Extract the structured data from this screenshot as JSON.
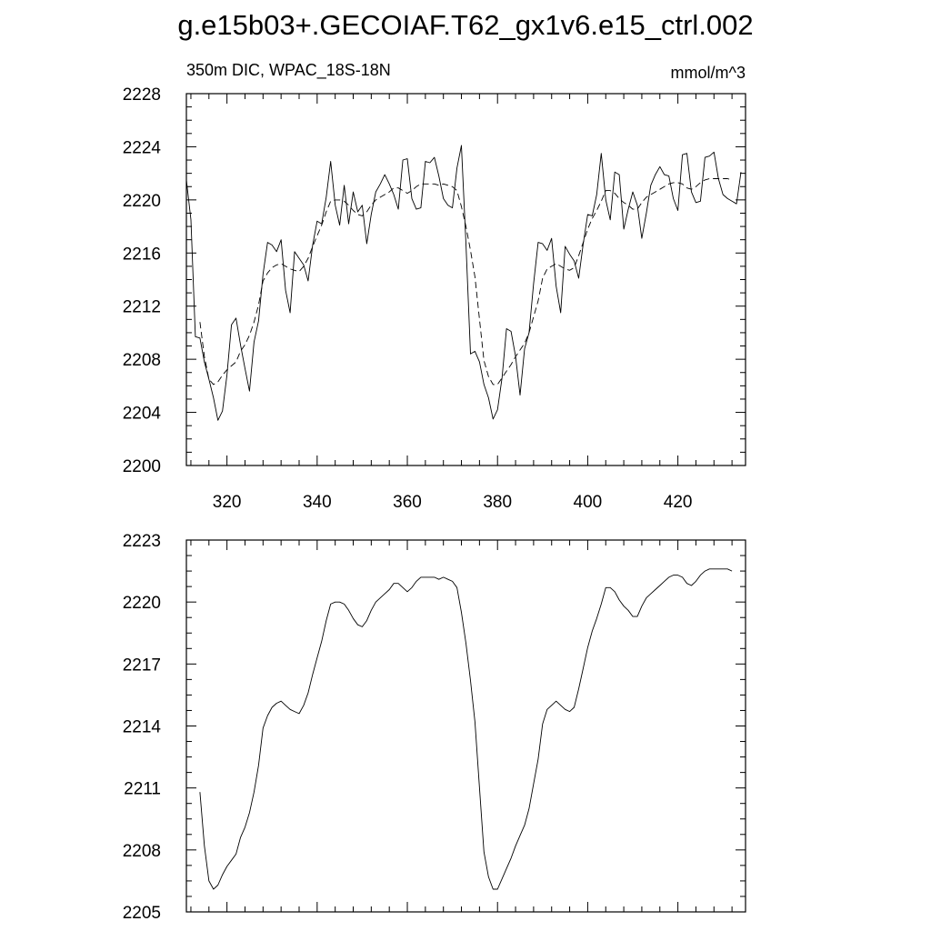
{
  "title": "g.e15b03+.GECOIAF.T62_gx1v6.e15_ctrl.002",
  "chart_data": [
    {
      "type": "line",
      "subtitle_left": "350m DIC, WPAC_18S-18N",
      "subtitle_right": "mmol/m^3",
      "xlim": [
        311,
        435
      ],
      "ylim": [
        2200,
        2228
      ],
      "x_ticks": [
        320,
        340,
        360,
        380,
        400,
        420
      ],
      "y_ticks": [
        2200,
        2204,
        2208,
        2212,
        2216,
        2220,
        2224,
        2228
      ],
      "grid": false,
      "series": [
        {
          "style": "solid",
          "x": [
            311,
            312,
            313,
            314,
            315,
            316,
            317,
            318,
            319,
            320,
            321,
            322,
            323,
            324,
            325,
            326,
            327,
            328,
            329,
            330,
            331,
            332,
            333,
            334,
            335,
            336,
            337,
            338,
            339,
            340,
            341,
            342,
            343,
            344,
            345,
            346,
            347,
            348,
            349,
            350,
            351,
            352,
            353,
            354,
            355,
            356,
            357,
            358,
            359,
            360,
            361,
            362,
            363,
            364,
            365,
            366,
            367,
            368,
            369,
            370,
            371,
            372,
            373,
            374,
            375,
            376,
            377,
            378,
            379,
            380,
            381,
            382,
            383,
            384,
            385,
            386,
            387,
            388,
            389,
            390,
            391,
            392,
            393,
            394,
            395,
            396,
            397,
            398,
            399,
            400,
            401,
            402,
            403,
            404,
            405,
            406,
            407,
            408,
            409,
            410,
            411,
            412,
            413,
            414,
            415,
            416,
            417,
            418,
            419,
            420,
            421,
            422,
            423,
            424,
            425,
            426,
            427,
            428,
            429,
            430,
            431,
            432,
            433,
            434
          ],
          "y": [
            2221.5,
            2218.5,
            2209.7,
            2209.6,
            2207.8,
            2206.5,
            2205.1,
            2203.4,
            2204.1,
            2206.8,
            2210.6,
            2211.1,
            2209.1,
            2207.3,
            2205.6,
            2209.3,
            2210.9,
            2214.4,
            2216.8,
            2216.6,
            2216.1,
            2217,
            2213.2,
            2211.5,
            2216.1,
            2215.6,
            2215.1,
            2213.9,
            2216.6,
            2218.4,
            2218.2,
            2220.2,
            2222.9,
            2219.6,
            2218.1,
            2221.1,
            2218.2,
            2220.6,
            2219.1,
            2219.6,
            2216.7,
            2218.9,
            2220.6,
            2221.2,
            2221.9,
            2221.2,
            2220.4,
            2219.3,
            2223,
            2223.1,
            2220.1,
            2219.3,
            2219.4,
            2222.9,
            2222.8,
            2223.2,
            2221.8,
            2220.1,
            2219.6,
            2219.4,
            2222.4,
            2224.1,
            2216.7,
            2208.4,
            2208.6,
            2207.8,
            2206.1,
            2205.1,
            2203.5,
            2204.2,
            2206.6,
            2210.3,
            2210.1,
            2208.2,
            2205.3,
            2208.8,
            2210,
            2213.7,
            2216.8,
            2216.7,
            2216.2,
            2217.1,
            2213.5,
            2211.5,
            2216.5,
            2215.9,
            2215.4,
            2214.1,
            2216.7,
            2218.9,
            2218.8,
            2220.4,
            2223.5,
            2220,
            2218.5,
            2222.1,
            2221.9,
            2217.8,
            2219.3,
            2220.6,
            2219.6,
            2217.1,
            2219,
            2221.1,
            2221.9,
            2222.5,
            2221.9,
            2221.8,
            2220.1,
            2219.2,
            2223.4,
            2223.5,
            2220.6,
            2219.8,
            2219.9,
            2223.2,
            2223.3,
            2223.6,
            2221.6,
            2220.4,
            2220.1,
            2219.9,
            2219.7,
            2222.1
          ]
        },
        {
          "style": "dashed",
          "x": [
            314,
            315,
            316,
            317,
            318,
            319,
            320,
            321,
            322,
            323,
            324,
            325,
            326,
            327,
            328,
            329,
            330,
            331,
            332,
            333,
            334,
            335,
            336,
            337,
            338,
            339,
            340,
            341,
            342,
            343,
            344,
            345,
            346,
            347,
            348,
            349,
            350,
            351,
            352,
            353,
            354,
            355,
            356,
            357,
            358,
            359,
            360,
            361,
            362,
            363,
            364,
            365,
            366,
            367,
            368,
            369,
            370,
            371,
            372,
            373,
            374,
            375,
            376,
            377,
            378,
            379,
            380,
            381,
            382,
            383,
            384,
            385,
            386,
            387,
            388,
            389,
            390,
            391,
            392,
            393,
            394,
            395,
            396,
            397,
            398,
            399,
            400,
            401,
            402,
            403,
            404,
            405,
            406,
            407,
            408,
            409,
            410,
            411,
            412,
            413,
            414,
            415,
            416,
            417,
            418,
            419,
            420,
            421,
            422,
            423,
            424,
            425,
            426,
            427,
            428,
            429,
            430,
            431,
            432
          ],
          "y": [
            2210.8,
            2208.2,
            2206.5,
            2206.1,
            2206.3,
            2206.8,
            2207.2,
            2207.5,
            2207.8,
            2208.6,
            2209.1,
            2209.8,
            2210.8,
            2212.1,
            2213.9,
            2214.5,
            2214.9,
            2215.1,
            2215.2,
            2215,
            2214.8,
            2214.7,
            2214.6,
            2215,
            2215.6,
            2216.5,
            2217.3,
            2218.1,
            2219.1,
            2219.9,
            2220,
            2220,
            2219.9,
            2219.6,
            2219.2,
            2218.9,
            2218.8,
            2219.1,
            2219.6,
            2220,
            2220.2,
            2220.4,
            2220.6,
            2220.9,
            2220.9,
            2220.7,
            2220.5,
            2220.7,
            2221,
            2221.2,
            2221.2,
            2221.2,
            2221.2,
            2221.1,
            2221.2,
            2221.1,
            2221,
            2220.7,
            2219.5,
            2218,
            2216.2,
            2214.2,
            2211,
            2207.9,
            2206.7,
            2206.1,
            2206.1,
            2206.6,
            2207.1,
            2207.6,
            2208.2,
            2208.7,
            2209.2,
            2210,
            2211.2,
            2212.4,
            2214.1,
            2214.8,
            2215,
            2215.2,
            2215,
            2214.8,
            2214.7,
            2214.9,
            2215.8,
            2216.8,
            2217.8,
            2218.6,
            2219.2,
            2219.9,
            2220.7,
            2220.7,
            2220.5,
            2220.1,
            2219.8,
            2219.6,
            2219.3,
            2219.3,
            2219.8,
            2220.2,
            2220.4,
            2220.6,
            2220.8,
            2221,
            2221.2,
            2221.3,
            2221.3,
            2221.2,
            2220.9,
            2220.8,
            2221,
            2221.3,
            2221.5,
            2221.6,
            2221.6,
            2221.6,
            2221.6,
            2221.6,
            2221.5
          ]
        }
      ]
    },
    {
      "type": "line",
      "xlim": [
        311,
        435
      ],
      "ylim": [
        2205,
        2223
      ],
      "y_ticks": [
        2205,
        2208,
        2211,
        2214,
        2217,
        2220,
        2223
      ],
      "grid": false,
      "series": [
        {
          "style": "solid",
          "x": [
            314,
            315,
            316,
            317,
            318,
            319,
            320,
            321,
            322,
            323,
            324,
            325,
            326,
            327,
            328,
            329,
            330,
            331,
            332,
            333,
            334,
            335,
            336,
            337,
            338,
            339,
            340,
            341,
            342,
            343,
            344,
            345,
            346,
            347,
            348,
            349,
            350,
            351,
            352,
            353,
            354,
            355,
            356,
            357,
            358,
            359,
            360,
            361,
            362,
            363,
            364,
            365,
            366,
            367,
            368,
            369,
            370,
            371,
            372,
            373,
            374,
            375,
            376,
            377,
            378,
            379,
            380,
            381,
            382,
            383,
            384,
            385,
            386,
            387,
            388,
            389,
            390,
            391,
            392,
            393,
            394,
            395,
            396,
            397,
            398,
            399,
            400,
            401,
            402,
            403,
            404,
            405,
            406,
            407,
            408,
            409,
            410,
            411,
            412,
            413,
            414,
            415,
            416,
            417,
            418,
            419,
            420,
            421,
            422,
            423,
            424,
            425,
            426,
            427,
            428,
            429,
            430,
            431,
            432
          ],
          "y": [
            2210.8,
            2208.2,
            2206.5,
            2206.1,
            2206.3,
            2206.8,
            2207.2,
            2207.5,
            2207.8,
            2208.6,
            2209.1,
            2209.8,
            2210.8,
            2212.1,
            2213.9,
            2214.5,
            2214.9,
            2215.1,
            2215.2,
            2215,
            2214.8,
            2214.7,
            2214.6,
            2215,
            2215.6,
            2216.5,
            2217.3,
            2218.1,
            2219.1,
            2219.9,
            2220,
            2220,
            2219.9,
            2219.6,
            2219.2,
            2218.9,
            2218.8,
            2219.1,
            2219.6,
            2220,
            2220.2,
            2220.4,
            2220.6,
            2220.9,
            2220.9,
            2220.7,
            2220.5,
            2220.7,
            2221,
            2221.2,
            2221.2,
            2221.2,
            2221.2,
            2221.1,
            2221.2,
            2221.1,
            2221,
            2220.7,
            2219.5,
            2218,
            2216.2,
            2214.2,
            2211,
            2207.9,
            2206.7,
            2206.1,
            2206.1,
            2206.6,
            2207.1,
            2207.6,
            2208.2,
            2208.7,
            2209.2,
            2210,
            2211.2,
            2212.4,
            2214.1,
            2214.8,
            2215,
            2215.2,
            2215,
            2214.8,
            2214.7,
            2214.9,
            2215.8,
            2216.8,
            2217.8,
            2218.6,
            2219.2,
            2219.9,
            2220.7,
            2220.7,
            2220.5,
            2220.1,
            2219.8,
            2219.6,
            2219.3,
            2219.3,
            2219.8,
            2220.2,
            2220.4,
            2220.6,
            2220.8,
            2221,
            2221.2,
            2221.3,
            2221.3,
            2221.2,
            2220.9,
            2220.8,
            2221,
            2221.3,
            2221.5,
            2221.6,
            2221.6,
            2221.6,
            2221.6,
            2221.6,
            2221.5
          ]
        }
      ]
    }
  ]
}
